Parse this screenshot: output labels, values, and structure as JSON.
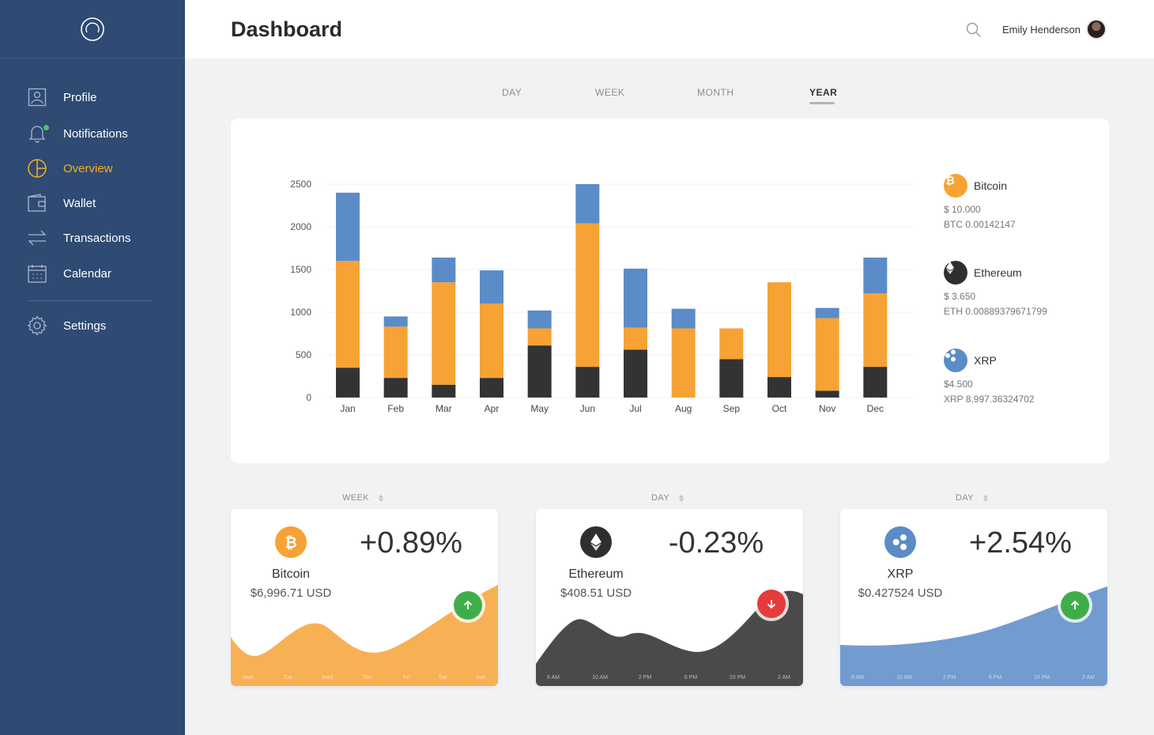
{
  "header": {
    "title": "Dashboard",
    "user_name": "Emily Henderson"
  },
  "sidebar": {
    "items": [
      {
        "label": "Profile",
        "icon": "profile-icon"
      },
      {
        "label": "Notifications",
        "icon": "bell-icon"
      },
      {
        "label": "Overview",
        "icon": "pie-chart-icon",
        "active": true
      },
      {
        "label": "Wallet",
        "icon": "wallet-icon"
      },
      {
        "label": "Transactions",
        "icon": "transfer-icon"
      },
      {
        "label": "Calendar",
        "icon": "calendar-icon"
      },
      {
        "label": "Settings",
        "icon": "gear-icon"
      }
    ]
  },
  "periods": {
    "tabs": [
      "DAY",
      "WEEK",
      "MONTH",
      "YEAR"
    ],
    "active": "YEAR"
  },
  "colors": {
    "bitcoin": "#f7a234",
    "ethereum": "#333333",
    "xrp": "#5b8cc8",
    "sidebar": "#2f4a73",
    "active": "#f3b21f",
    "up": "#3fae4a",
    "down": "#e63b3b"
  },
  "chart_data": {
    "type": "bar",
    "stacked": true,
    "categories": [
      "Jan",
      "Feb",
      "Mar",
      "Apr",
      "May",
      "Jun",
      "Jul",
      "Aug",
      "Sep",
      "Oct",
      "Nov",
      "Dec"
    ],
    "y_ticks": [
      0,
      500,
      1000,
      1500,
      2000,
      2500
    ],
    "ylim": [
      0,
      2500
    ],
    "grid": true,
    "series": [
      {
        "name": "Ethereum",
        "values": [
          350,
          230,
          150,
          230,
          610,
          360,
          560,
          0,
          450,
          240,
          80,
          360
        ]
      },
      {
        "name": "Bitcoin",
        "values": [
          1250,
          600,
          1200,
          870,
          200,
          1680,
          260,
          810,
          360,
          1110,
          850,
          860
        ]
      },
      {
        "name": "XRP",
        "values": [
          800,
          120,
          290,
          390,
          210,
          460,
          690,
          230,
          0,
          0,
          120,
          420
        ]
      }
    ]
  },
  "legend": [
    {
      "name": "Bitcoin",
      "value": "$ 10.000",
      "amount": "BTC 0.00142147",
      "icon": "bitcoin-icon"
    },
    {
      "name": "Ethereum",
      "value": "$ 3.650",
      "amount": "ETH 0.00889379671799",
      "icon": "ethereum-icon"
    },
    {
      "name": "XRP",
      "value": "$4.500",
      "amount": "XRP 8,997.36324702",
      "icon": "xrp-icon"
    }
  ],
  "cards": [
    {
      "period": "WEEK",
      "name": "Bitcoin",
      "price": "$6,996.71 USD",
      "change": "+0.89%",
      "trend": "up",
      "axis": [
        "Mon",
        "Tue",
        "Wed",
        "Thu",
        "Fri",
        "Sat",
        "Sun"
      ]
    },
    {
      "period": "DAY",
      "name": "Ethereum",
      "price": "$408.51 USD",
      "change": "-0.23%",
      "trend": "down",
      "axis": [
        "6 AM",
        "10 AM",
        "2 PM",
        "6 PM",
        "10 PM",
        "2 AM"
      ]
    },
    {
      "period": "DAY",
      "name": "XRP",
      "price": "$0.427524 USD",
      "change": "+2.54%",
      "trend": "up",
      "axis": [
        "6 AM",
        "10 AM",
        "2 PM",
        "6 PM",
        "10 PM",
        "2 AM"
      ]
    }
  ]
}
